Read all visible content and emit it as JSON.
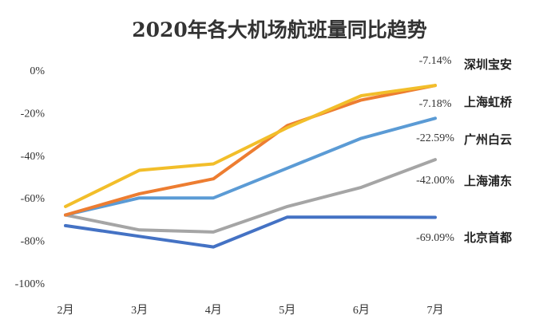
{
  "chart_data": {
    "type": "line",
    "title": "2020年各大机场航班量同比趋势",
    "categories": [
      "2月",
      "3月",
      "4月",
      "5月",
      "6月",
      "7月"
    ],
    "y_ticks": [
      "0%",
      "-20%",
      "-40%",
      "-60%",
      "-80%",
      "-100%"
    ],
    "ylim": [
      -100,
      0
    ],
    "grid": false,
    "series": [
      {
        "name": "深圳宝安",
        "color": "#F2BE2A",
        "values": [
          -64,
          -47,
          -44,
          -27,
          -12,
          -7.14
        ],
        "end_label": "-7.14%"
      },
      {
        "name": "上海虹桥",
        "color": "#ED7D31",
        "values": [
          -68,
          -58,
          -51,
          -26,
          -14,
          -7.18
        ],
        "end_label": "-7.18%"
      },
      {
        "name": "广州白云",
        "color": "#5B9BD5",
        "values": [
          -68,
          -60,
          -60,
          -46,
          -32,
          -22.59
        ],
        "end_label": "-22.59%"
      },
      {
        "name": "上海浦东",
        "color": "#A5A5A5",
        "values": [
          -68,
          -75,
          -76,
          -64,
          -55,
          -42.0
        ],
        "end_label": "-42.00%"
      },
      {
        "name": "北京首都",
        "color": "#4472C4",
        "values": [
          -73,
          -78,
          -83,
          -69,
          -69,
          -69.09
        ],
        "end_label": "-69.09%"
      }
    ]
  }
}
